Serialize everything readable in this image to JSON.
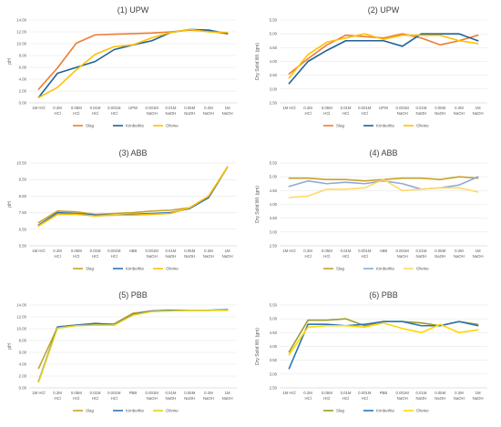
{
  "chart_data": [
    {
      "type": "line",
      "title": "(1) UPW",
      "ylabel": "pH",
      "ylim": [
        0,
        14
      ],
      "ytick_step": 2,
      "ytick_decimals": 2,
      "grid": true,
      "legend": "bottom",
      "categories": [
        [
          "1M HCl"
        ],
        [
          "0.2M",
          "HCl"
        ],
        [
          "0.05M",
          "HCl"
        ],
        [
          "0.01M",
          "HCl"
        ],
        [
          "0.001M",
          "HCl"
        ],
        [
          "UPW"
        ],
        [
          "0.001M",
          "NaOH"
        ],
        [
          "0.01M",
          "NaOH"
        ],
        [
          "0.05M",
          "NaOH"
        ],
        [
          "0.2M",
          "NaOH"
        ],
        [
          "1M",
          "NaOH"
        ]
      ],
      "series": [
        {
          "name": "Slag",
          "color": "#ED7D31",
          "values": [
            2.3,
            5.9,
            10.1,
            11.5,
            11.6,
            11.7,
            11.8,
            12.0,
            12.3,
            12.1,
            11.7
          ]
        },
        {
          "name": "Kimberlite",
          "color": "#1F6396",
          "values": [
            0.9,
            5.0,
            6.0,
            7.0,
            9.0,
            9.8,
            10.5,
            11.9,
            12.4,
            12.3,
            11.7
          ]
        },
        {
          "name": "Olivine",
          "color": "#FFC000",
          "values": [
            0.9,
            2.6,
            5.6,
            8.2,
            9.5,
            9.8,
            11.0,
            11.9,
            12.4,
            12.0,
            11.9
          ]
        }
      ]
    },
    {
      "type": "line",
      "title": "(2) UPW",
      "ylabel": "Dry Solid Wt. (gm)",
      "ylim": [
        2.5,
        5.5
      ],
      "ytick_step": 0.5,
      "ytick_decimals": 2,
      "grid": true,
      "legend": "bottom",
      "categories": [
        [
          "1M HCl"
        ],
        [
          "0.2M",
          "HCl"
        ],
        [
          "0.05M",
          "HCl"
        ],
        [
          "0.01M",
          "HCl"
        ],
        [
          "0.001M",
          "HCl"
        ],
        [
          "UPW"
        ],
        [
          "0.001M",
          "NaOH"
        ],
        [
          "0.01M",
          "NaOH"
        ],
        [
          "0.05M",
          "NaOH"
        ],
        [
          "0.2M",
          "NaOH"
        ],
        [
          "1M",
          "NaOH"
        ]
      ],
      "series": [
        {
          "name": "Slag",
          "color": "#ED7D31",
          "values": [
            3.55,
            4.1,
            4.6,
            4.95,
            4.9,
            4.85,
            5.0,
            4.85,
            4.6,
            4.75,
            4.95
          ]
        },
        {
          "name": "Kimberlite",
          "color": "#1F6396",
          "values": [
            3.2,
            4.0,
            4.4,
            4.75,
            4.75,
            4.75,
            4.55,
            5.0,
            5.0,
            5.0,
            4.75
          ]
        },
        {
          "name": "Olivine",
          "color": "#FFC000",
          "values": [
            3.4,
            4.25,
            4.7,
            4.85,
            5.0,
            4.8,
            4.95,
            4.95,
            4.95,
            4.75,
            4.65
          ]
        }
      ]
    },
    {
      "type": "line",
      "title": "(3) ABB",
      "ylabel": "pH",
      "ylim": [
        5.5,
        10.5
      ],
      "yticks": [
        5.5,
        6.5,
        7.5,
        8.5,
        9.5,
        10.5
      ],
      "ytick_decimals": 2,
      "grid": true,
      "legend": "bottom",
      "categories": [
        [
          "1M HCl"
        ],
        [
          "0.2M",
          "HCl"
        ],
        [
          "0.05M",
          "HCl"
        ],
        [
          "0.01M",
          "HCl"
        ],
        [
          "0.001M",
          "HCl"
        ],
        [
          "ABB"
        ],
        [
          "0.001M",
          "NaOH"
        ],
        [
          "0.01M",
          "NaOH"
        ],
        [
          "0.05M",
          "NaOH"
        ],
        [
          "0.2M",
          "NaOH"
        ],
        [
          "1M",
          "NaOH"
        ]
      ],
      "series": [
        {
          "name": "Slag",
          "color": "#C9A227",
          "values": [
            6.9,
            7.6,
            7.55,
            7.4,
            7.45,
            7.5,
            7.6,
            7.65,
            7.8,
            8.4,
            10.25
          ]
        },
        {
          "name": "Kimberlite",
          "color": "#2E75B6",
          "values": [
            6.75,
            7.5,
            7.45,
            7.35,
            7.35,
            7.4,
            7.45,
            7.5,
            7.75,
            8.4,
            10.25
          ]
        },
        {
          "name": "Olivine",
          "color": "#FFC000",
          "values": [
            6.7,
            7.4,
            7.4,
            7.3,
            7.35,
            7.35,
            7.4,
            7.45,
            7.8,
            8.5,
            10.25
          ]
        }
      ]
    },
    {
      "type": "line",
      "title": "(4) ABB",
      "ylabel": "Dry Solid Wt. (gm)",
      "ylim": [
        2.5,
        5.5
      ],
      "ytick_step": 0.5,
      "ytick_decimals": 2,
      "grid": true,
      "legend": "bottom",
      "categories": [
        [
          "1M HCl"
        ],
        [
          "0.2M",
          "HCl"
        ],
        [
          "0.05M",
          "HCl"
        ],
        [
          "0.01M",
          "HCl"
        ],
        [
          "0.001M",
          "HCl"
        ],
        [
          "ABB"
        ],
        [
          "0.001M",
          "NaOH"
        ],
        [
          "0.01M",
          "NaOH"
        ],
        [
          "0.05M",
          "NaOH"
        ],
        [
          "0.2M",
          "NaOH"
        ],
        [
          "1M",
          "NaOH"
        ]
      ],
      "series": [
        {
          "name": "Slag",
          "color": "#C9A227",
          "values": [
            4.95,
            4.95,
            4.9,
            4.9,
            4.85,
            4.9,
            4.95,
            4.95,
            4.9,
            5.0,
            4.95
          ]
        },
        {
          "name": "Kimberlite",
          "color": "#8EA9DB",
          "values": [
            4.65,
            4.85,
            4.75,
            4.8,
            4.75,
            4.85,
            4.75,
            4.55,
            4.6,
            4.7,
            5.0
          ]
        },
        {
          "name": "Olivine",
          "color": "#FFD966",
          "values": [
            4.25,
            4.3,
            4.55,
            4.55,
            4.6,
            4.9,
            4.5,
            4.55,
            4.6,
            4.6,
            4.45
          ]
        }
      ]
    },
    {
      "type": "line",
      "title": "(5) PBB",
      "ylabel": "pH",
      "ylim": [
        0,
        14
      ],
      "ytick_step": 2,
      "ytick_decimals": 2,
      "grid": true,
      "legend": "bottom",
      "categories": [
        [
          "1M HCl"
        ],
        [
          "0.2M",
          "HCl"
        ],
        [
          "0.05M",
          "HCl"
        ],
        [
          "0.01M",
          "HCl"
        ],
        [
          "0.001M",
          "HCl"
        ],
        [
          "PBB"
        ],
        [
          "0.001M",
          "NaOH"
        ],
        [
          "0.01M",
          "NaOH"
        ],
        [
          "0.05M",
          "NaOH"
        ],
        [
          "0.2M",
          "NaOH"
        ],
        [
          "1M",
          "NaOH"
        ]
      ],
      "series": [
        {
          "name": "Slag",
          "color": "#C9A227",
          "values": [
            3.3,
            10.2,
            10.6,
            10.7,
            10.8,
            12.6,
            13.0,
            13.1,
            13.1,
            13.1,
            13.2
          ]
        },
        {
          "name": "Kimberlite",
          "color": "#2E75B6",
          "values": [
            1.1,
            10.3,
            10.6,
            10.9,
            10.7,
            12.4,
            13.0,
            13.1,
            13.1,
            13.1,
            13.2
          ]
        },
        {
          "name": "Olivine",
          "color": "#E2D11B",
          "values": [
            1.0,
            10.1,
            10.5,
            10.6,
            10.6,
            12.3,
            12.9,
            13.0,
            13.1,
            13.1,
            13.1
          ]
        }
      ]
    },
    {
      "type": "line",
      "title": "(6) PBB",
      "ylabel": "Dry Solid Wt. (gm)",
      "ylim": [
        2.5,
        5.5
      ],
      "ytick_step": 0.5,
      "ytick_decimals": 2,
      "grid": true,
      "legend": "bottom",
      "categories": [
        [
          "1M HCl"
        ],
        [
          "0.2M",
          "HCl"
        ],
        [
          "0.05M",
          "HCl"
        ],
        [
          "0.01M",
          "HCl"
        ],
        [
          "0.001M",
          "HCl"
        ],
        [
          "PBB"
        ],
        [
          "0.001M",
          "NaOH"
        ],
        [
          "0.01M",
          "NaOH"
        ],
        [
          "0.05M",
          "NaOH"
        ],
        [
          "0.2M",
          "NaOH"
        ],
        [
          "1M",
          "NaOH"
        ]
      ],
      "series": [
        {
          "name": "Slag",
          "color": "#9C9C2E",
          "values": [
            3.8,
            4.95,
            4.95,
            5.0,
            4.75,
            4.9,
            4.9,
            4.85,
            4.75,
            4.9,
            4.8
          ]
        },
        {
          "name": "Kimberlite",
          "color": "#2E75B6",
          "values": [
            3.2,
            4.8,
            4.8,
            4.75,
            4.8,
            4.9,
            4.9,
            4.75,
            4.75,
            4.9,
            4.75
          ]
        },
        {
          "name": "Olivine",
          "color": "#FFD700",
          "values": [
            3.7,
            4.7,
            4.75,
            4.75,
            4.7,
            4.85,
            4.65,
            4.5,
            4.8,
            4.5,
            4.6
          ]
        }
      ]
    }
  ]
}
